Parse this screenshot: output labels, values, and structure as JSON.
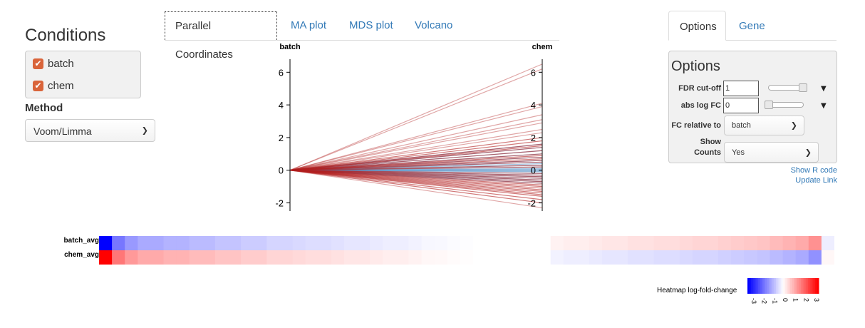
{
  "conditions": {
    "title": "Conditions",
    "items": [
      {
        "label": "batch",
        "checked": true
      },
      {
        "label": "chem",
        "checked": true
      }
    ],
    "check_color": "#d9643a"
  },
  "method": {
    "label": "Method",
    "selected": "Voom/Limma"
  },
  "tabs": [
    {
      "label": "Parallel Coordinates",
      "active": true
    },
    {
      "label": "MA plot",
      "active": false
    },
    {
      "label": "MDS plot",
      "active": false
    },
    {
      "label": "Volcano",
      "active": false
    }
  ],
  "side_tabs": [
    {
      "label": "Options",
      "active": true
    },
    {
      "label": "Gene",
      "active": false
    }
  ],
  "options": {
    "title": "Options",
    "fdr_label": "FDR cut-off",
    "fdr_value": "1",
    "fdr_level": 1.0,
    "abslogfc_label": "abs log FC",
    "abslogfc_value": "0",
    "abslogfc_level": 0.0,
    "fc_relative_label": "FC relative to",
    "fc_relative_value": "batch",
    "show_counts_label_1": "Show",
    "show_counts_label_2": "Counts",
    "show_counts_value": "Yes",
    "show_r_code": "Show R code",
    "update_link": "Update Link"
  },
  "chart_data": {
    "type": "parallel_coordinates",
    "axes": [
      "batch",
      "chem"
    ],
    "ylim": [
      -2.5,
      6.8
    ],
    "ticks": [
      "-2",
      "0",
      "2",
      "4",
      "6"
    ],
    "tick_values": [
      -2,
      0,
      2,
      4,
      6
    ],
    "batch_value": 0,
    "chem_values_red": [
      6.5,
      6.2,
      4.1,
      3.9,
      3.4,
      3.1,
      2.9,
      2.5,
      2.3,
      2.0,
      1.8,
      1.6,
      1.5,
      1.4,
      1.2,
      1.0,
      0.9,
      0.8,
      0.7,
      0.6,
      0.5,
      0.3,
      0.2,
      -0.2,
      -0.3,
      -0.4,
      -0.5,
      -0.6,
      -0.7,
      -0.8,
      -0.9,
      -1.0,
      -1.1,
      -1.2,
      -1.3,
      -1.4,
      -1.5,
      -1.6,
      -1.8,
      -2.0,
      -2.3
    ],
    "chem_values_blue": [
      1.6,
      1.4,
      1.2,
      1.0,
      0.8,
      0.6,
      0.5,
      0.4,
      0.3,
      0.2,
      0.1,
      0.05,
      0.0,
      -0.05,
      -0.1,
      -0.2,
      -0.3,
      -0.4,
      -0.5,
      -0.6,
      -0.7,
      -0.8
    ],
    "red_color": "#b22020",
    "blue_color": "#4a8cc4"
  },
  "heatmap": {
    "rows": [
      "batch_avg",
      "chem_avg"
    ],
    "legend_label": "Heatmap log-fold-change",
    "legend_ticks": [
      "-3",
      "-2",
      "-1",
      "0",
      "1",
      "2",
      "3"
    ],
    "scale_min": -3,
    "scale_max": 3,
    "low_color": "#0000ff",
    "mid_color": "#ffffff",
    "high_color": "#ff0000",
    "cells_batch": [
      -3.0,
      -1.6,
      -1.2,
      -1.0,
      -1.0,
      -0.9,
      -0.9,
      -0.8,
      -0.8,
      -0.7,
      -0.7,
      -0.6,
      -0.6,
      -0.5,
      -0.5,
      -0.45,
      -0.4,
      -0.4,
      -0.35,
      -0.3,
      -0.3,
      -0.25,
      -0.2,
      -0.2,
      -0.15,
      -0.1,
      -0.08,
      -0.05,
      -0.02,
      0.0,
      0.0,
      0.0,
      0.0,
      0.0,
      0.0,
      0.15,
      0.2,
      0.2,
      0.25,
      0.3,
      0.3,
      0.35,
      0.35,
      0.4,
      0.4,
      0.45,
      0.5,
      0.5,
      0.55,
      0.6,
      0.65,
      0.7,
      0.8,
      0.9,
      1.0,
      1.3,
      -0.2
    ],
    "cells_chem": [
      3.0,
      1.6,
      1.2,
      1.0,
      1.0,
      0.9,
      0.9,
      0.8,
      0.8,
      0.7,
      0.7,
      0.6,
      0.6,
      0.5,
      0.5,
      0.45,
      0.4,
      0.4,
      0.35,
      0.3,
      0.3,
      0.25,
      0.2,
      0.2,
      0.15,
      0.1,
      0.08,
      0.05,
      0.02,
      0.0,
      0.0,
      0.0,
      0.0,
      0.0,
      0.0,
      -0.15,
      -0.2,
      -0.2,
      -0.25,
      -0.3,
      -0.3,
      -0.35,
      -0.35,
      -0.4,
      -0.4,
      -0.45,
      -0.5,
      -0.5,
      -0.55,
      -0.6,
      -0.65,
      -0.7,
      -0.8,
      -0.9,
      -1.0,
      -1.3,
      0.1
    ]
  }
}
